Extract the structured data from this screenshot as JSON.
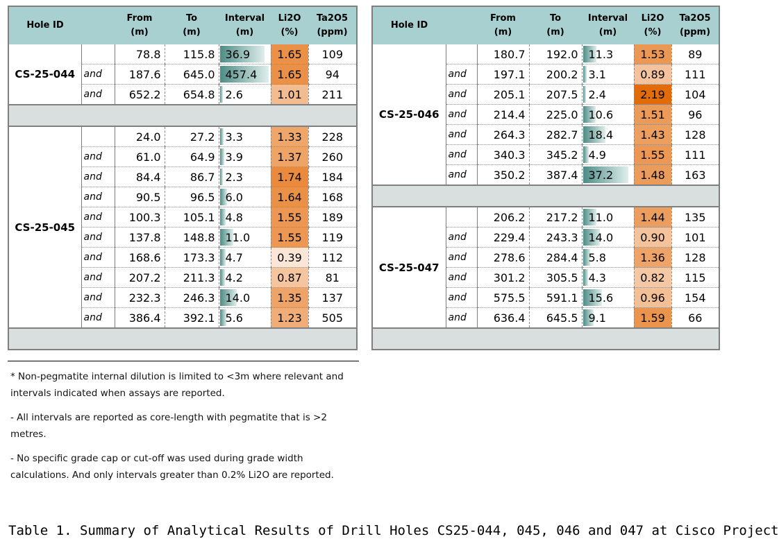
{
  "headers": {
    "hole_id": "Hole ID",
    "from": "From",
    "from_unit": "(m)",
    "to": "To",
    "to_unit": "(m)",
    "interval": "Interval",
    "interval_unit": "(m)",
    "li2o": "Li2O",
    "li2o_unit": "(%)",
    "ta2o5": "Ta2O5",
    "ta2o5_unit": "(ppm)"
  },
  "colors": {
    "header_bg": "#a9d0d1",
    "separator_bg": "#d9dedf",
    "bar_start": "#4e8c86",
    "bar_end": "#dfeeec",
    "li2o_low": "#fbe5d6",
    "li2o_high": "#e36c0a"
  },
  "holes": [
    {
      "id": "CS-25-044",
      "rows": [
        {
          "prefix": "",
          "from": "78.8",
          "to": "115.8",
          "interval": "36.9",
          "li2o": "1.65",
          "ta2o5": "109"
        },
        {
          "prefix": "and",
          "from": "187.6",
          "to": "645.0",
          "interval": "457.4",
          "li2o": "1.65",
          "ta2o5": "94"
        },
        {
          "prefix": "and",
          "from": "652.2",
          "to": "654.8",
          "interval": "2.6",
          "li2o": "1.01",
          "ta2o5": "211"
        }
      ]
    },
    {
      "id": "CS-25-045",
      "rows": [
        {
          "prefix": "",
          "from": "24.0",
          "to": "27.2",
          "interval": "3.3",
          "li2o": "1.33",
          "ta2o5": "228"
        },
        {
          "prefix": "and",
          "from": "61.0",
          "to": "64.9",
          "interval": "3.9",
          "li2o": "1.37",
          "ta2o5": "260"
        },
        {
          "prefix": "and",
          "from": "84.4",
          "to": "86.7",
          "interval": "2.3",
          "li2o": "1.74",
          "ta2o5": "184"
        },
        {
          "prefix": "and",
          "from": "90.5",
          "to": "96.5",
          "interval": "6.0",
          "li2o": "1.64",
          "ta2o5": "168"
        },
        {
          "prefix": "and",
          "from": "100.3",
          "to": "105.1",
          "interval": "4.8",
          "li2o": "1.55",
          "ta2o5": "189"
        },
        {
          "prefix": "and",
          "from": "137.8",
          "to": "148.8",
          "interval": "11.0",
          "li2o": "1.55",
          "ta2o5": "119"
        },
        {
          "prefix": "and",
          "from": "168.6",
          "to": "173.3",
          "interval": "4.7",
          "li2o": "0.39",
          "ta2o5": "112"
        },
        {
          "prefix": "and",
          "from": "207.2",
          "to": "211.3",
          "interval": "4.2",
          "li2o": "0.87",
          "ta2o5": "81"
        },
        {
          "prefix": "and",
          "from": "232.3",
          "to": "246.3",
          "interval": "14.0",
          "li2o": "1.35",
          "ta2o5": "137"
        },
        {
          "prefix": "and",
          "from": "386.4",
          "to": "392.1",
          "interval": "5.6",
          "li2o": "1.23",
          "ta2o5": "505"
        }
      ]
    },
    {
      "id": "CS-25-046",
      "rows": [
        {
          "prefix": "",
          "from": "180.7",
          "to": "192.0",
          "interval": "11.3",
          "li2o": "1.53",
          "ta2o5": "89"
        },
        {
          "prefix": "and",
          "from": "197.1",
          "to": "200.2",
          "interval": "3.1",
          "li2o": "0.89",
          "ta2o5": "111"
        },
        {
          "prefix": "and",
          "from": "205.1",
          "to": "207.5",
          "interval": "2.4",
          "li2o": "2.19",
          "ta2o5": "104"
        },
        {
          "prefix": "and",
          "from": "214.4",
          "to": "225.0",
          "interval": "10.6",
          "li2o": "1.51",
          "ta2o5": "96"
        },
        {
          "prefix": "and",
          "from": "264.3",
          "to": "282.7",
          "interval": "18.4",
          "li2o": "1.43",
          "ta2o5": "128"
        },
        {
          "prefix": "and",
          "from": "340.3",
          "to": "345.2",
          "interval": "4.9",
          "li2o": "1.55",
          "ta2o5": "111"
        },
        {
          "prefix": "and",
          "from": "350.2",
          "to": "387.4",
          "interval": "37.2",
          "li2o": "1.48",
          "ta2o5": "163"
        }
      ]
    },
    {
      "id": "CS-25-047",
      "rows": [
        {
          "prefix": "",
          "from": "206.2",
          "to": "217.2",
          "interval": "11.0",
          "li2o": "1.44",
          "ta2o5": "135"
        },
        {
          "prefix": "and",
          "from": "229.4",
          "to": "243.3",
          "interval": "14.0",
          "li2o": "0.90",
          "ta2o5": "101"
        },
        {
          "prefix": "and",
          "from": "278.6",
          "to": "284.4",
          "interval": "5.8",
          "li2o": "1.36",
          "ta2o5": "128"
        },
        {
          "prefix": "and",
          "from": "301.2",
          "to": "305.5",
          "interval": "4.3",
          "li2o": "0.82",
          "ta2o5": "115"
        },
        {
          "prefix": "and",
          "from": "575.5",
          "to": "591.1",
          "interval": "15.6",
          "li2o": "0.96",
          "ta2o5": "154"
        },
        {
          "prefix": "and",
          "from": "636.4",
          "to": "645.5",
          "interval": "9.1",
          "li2o": "1.59",
          "ta2o5": "66"
        }
      ]
    }
  ],
  "notes": [
    "* Non-pegmatite internal dilution is limited to <3m where relevant and intervals indicated when assays are reported.",
    "- All intervals are reported as core-length with pegmatite that is >2 metres.",
    "- No specific grade cap or cut-off was used during grade width calculations. And only intervals greater than 0.2% Li2O are reported."
  ],
  "caption": "Table 1. Summary of Analytical Results of Drill Holes CS25-044, 045, 046 and 047 at Cisco Project"
}
